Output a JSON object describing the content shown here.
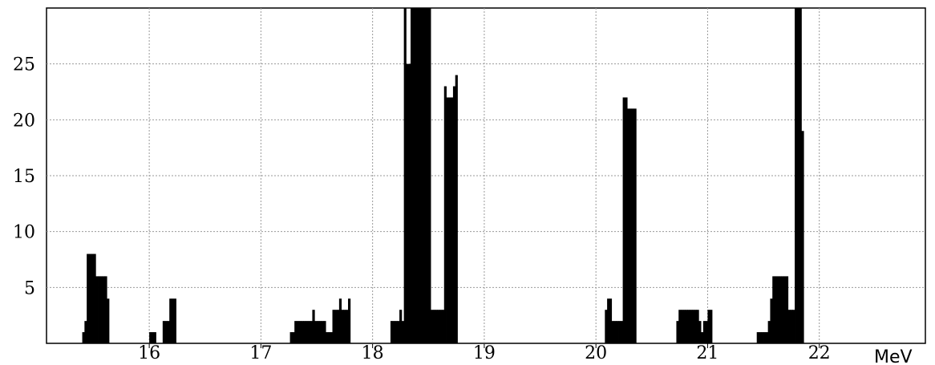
{
  "chart_data": {
    "type": "bar",
    "xlabel": "MeV",
    "ylabel": "",
    "title": "",
    "xlim": [
      15.08,
      22.95
    ],
    "ylim": [
      0,
      30
    ],
    "x_ticks": [
      "16",
      "17",
      "18",
      "19",
      "20",
      "21",
      "22"
    ],
    "y_ticks": [
      "5",
      "10",
      "15",
      "20",
      "25"
    ],
    "grid": true,
    "bin_width": 0.02,
    "bar_color": "#000000",
    "x": [
      15.4,
      15.42,
      15.44,
      15.46,
      15.48,
      15.5,
      15.52,
      15.54,
      15.56,
      15.58,
      15.6,
      15.62,
      16.0,
      16.02,
      16.04,
      16.12,
      16.14,
      16.16,
      16.18,
      16.2,
      16.22,
      17.26,
      17.28,
      17.3,
      17.32,
      17.34,
      17.36,
      17.38,
      17.4,
      17.42,
      17.44,
      17.46,
      17.48,
      17.5,
      17.52,
      17.54,
      17.56,
      17.58,
      17.6,
      17.62,
      17.64,
      17.66,
      17.68,
      17.7,
      17.72,
      17.74,
      17.76,
      17.78,
      18.16,
      18.18,
      18.2,
      18.22,
      18.24,
      18.26,
      18.28,
      18.3,
      18.32,
      18.34,
      18.36,
      18.38,
      18.4,
      18.42,
      18.44,
      18.46,
      18.48,
      18.5,
      18.52,
      18.54,
      18.56,
      18.58,
      18.6,
      18.62,
      18.64,
      18.66,
      18.68,
      18.7,
      18.72,
      18.74,
      20.08,
      20.1,
      20.12,
      20.14,
      20.16,
      20.18,
      20.2,
      20.22,
      20.24,
      20.26,
      20.28,
      20.3,
      20.32,
      20.34,
      20.72,
      20.74,
      20.76,
      20.78,
      20.8,
      20.82,
      20.84,
      20.86,
      20.88,
      20.9,
      20.92,
      20.94,
      20.96,
      20.98,
      21.0,
      21.02,
      21.44,
      21.46,
      21.48,
      21.5,
      21.52,
      21.54,
      21.56,
      21.58,
      21.6,
      21.62,
      21.64,
      21.66,
      21.68,
      21.7,
      21.72,
      21.74,
      21.76,
      21.78,
      21.8,
      21.82,
      21.84
    ],
    "values": [
      1,
      2,
      8,
      8,
      8,
      8,
      6,
      6,
      6,
      6,
      6,
      4,
      1,
      1,
      1,
      2,
      2,
      2,
      4,
      4,
      4,
      1,
      1,
      2,
      2,
      2,
      2,
      2,
      2,
      2,
      2,
      3,
      2,
      2,
      2,
      2,
      2,
      1,
      1,
      1,
      3,
      3,
      3,
      4,
      3,
      3,
      3,
      4,
      2,
      2,
      2,
      2,
      3,
      2,
      30,
      25,
      25,
      30,
      30,
      30,
      30,
      30,
      30,
      30,
      30,
      30,
      3,
      3,
      3,
      3,
      3,
      3,
      23,
      22,
      22,
      22,
      23,
      24,
      3,
      4,
      4,
      2,
      2,
      2,
      2,
      2,
      22,
      22,
      21,
      21,
      21,
      21,
      2,
      3,
      3,
      3,
      3,
      3,
      3,
      3,
      3,
      3,
      2,
      1,
      2,
      2,
      3,
      3,
      1,
      1,
      1,
      1,
      1,
      2,
      4,
      6,
      6,
      6,
      6,
      6,
      6,
      6,
      3,
      3,
      3,
      30,
      30,
      30,
      19
    ]
  }
}
